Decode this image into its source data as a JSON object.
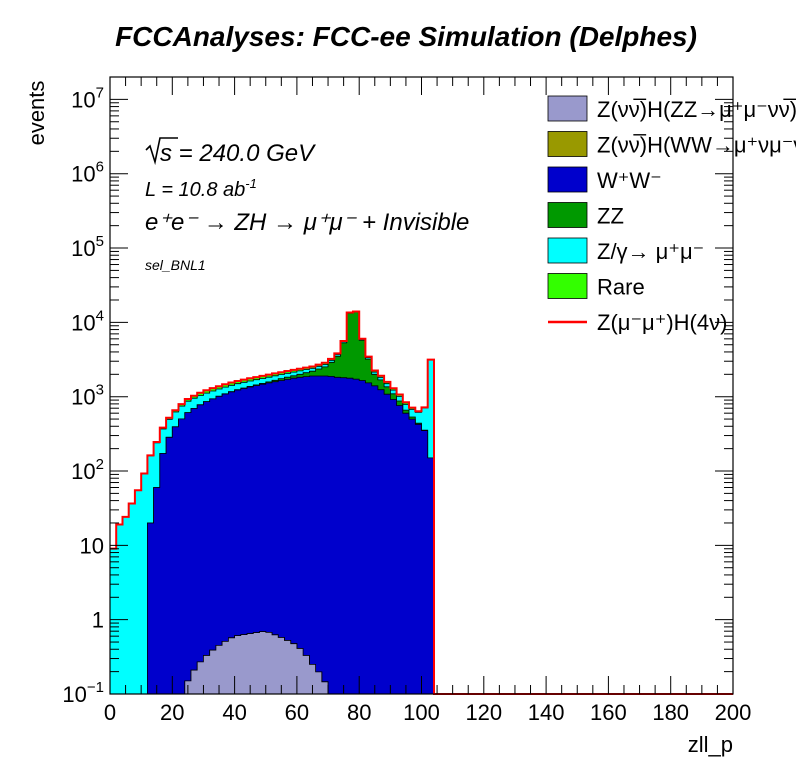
{
  "chart_data": {
    "type": "histogram-stacked",
    "title": "FCCAnalyses: FCC-ee Simulation (Delphes)",
    "xlabel": "zll_p",
    "ylabel": "events",
    "xlim": [
      0,
      200
    ],
    "ylim": [
      0.1,
      20000000
    ],
    "yscale": "log",
    "x_ticks": [
      "0",
      "20",
      "40",
      "60",
      "80",
      "100",
      "120",
      "140",
      "160",
      "180",
      "200"
    ],
    "y_ticks": [
      {
        "v": 0.1,
        "base": "10",
        "exp": "−1"
      },
      {
        "v": 1,
        "base": "1",
        "exp": ""
      },
      {
        "v": 10,
        "base": "10",
        "exp": ""
      },
      {
        "v": 100,
        "base": "10",
        "exp": "2"
      },
      {
        "v": 1000,
        "base": "10",
        "exp": "3"
      },
      {
        "v": 10000,
        "base": "10",
        "exp": "4"
      },
      {
        "v": 100000,
        "base": "10",
        "exp": "5"
      },
      {
        "v": 1000000,
        "base": "10",
        "exp": "6"
      },
      {
        "v": 10000000,
        "base": "10",
        "exp": "7"
      }
    ],
    "annotations": {
      "sqrt_s": "s = 240.0 GeV",
      "lumi": "L = 10.8 ab",
      "lumi_exp": "-1",
      "process": "e⁺e⁻ → ZH → μ⁺μ⁻ + Invisible",
      "selection": "sel_BNL1"
    },
    "legend_position": "top-right",
    "x_points": [
      0,
      2,
      4,
      6,
      8,
      10,
      12,
      15,
      20,
      25,
      30,
      40,
      50,
      60,
      65,
      70,
      74,
      76,
      78,
      80,
      82,
      85,
      90,
      95,
      98,
      100,
      102,
      103,
      104,
      105
    ],
    "series": [
      {
        "name": "Z(νν̅)H(ZZ→μ⁺μ⁻νν̅)",
        "color": "#9999cc",
        "type": "stack",
        "values": [
          0,
          0,
          0,
          0,
          0,
          0,
          0,
          0,
          0,
          0.15,
          0.3,
          0.6,
          0.7,
          0.45,
          0.25,
          0.12,
          0,
          0,
          0,
          0,
          0,
          0,
          0,
          0,
          0,
          0,
          0,
          0,
          0,
          0
        ]
      },
      {
        "name": "Z(νν̅)H(WW→μ⁺νμ⁻ν̅)",
        "color": "#999900",
        "type": "stack",
        "values": [
          0,
          0,
          0,
          0,
          0,
          0,
          0,
          0,
          0,
          0,
          0,
          0,
          0,
          0,
          0,
          0,
          0,
          0,
          0,
          0,
          0,
          0,
          0,
          0,
          0,
          0,
          0,
          0,
          0,
          0
        ]
      },
      {
        "name": "W⁺W⁻",
        "color": "#0000cc",
        "type": "stack",
        "values": [
          0,
          0,
          0,
          0,
          0,
          0,
          0,
          60,
          340,
          610,
          820,
          1200,
          1500,
          1800,
          1900,
          1900,
          1800,
          1800,
          1750,
          1700,
          1600,
          1400,
          1000,
          600,
          450,
          400,
          300,
          150,
          0,
          0
        ]
      },
      {
        "name": "ZZ",
        "color": "#009900",
        "type": "stack",
        "values": [
          0,
          0,
          0,
          0,
          0,
          0,
          0,
          0,
          0,
          0,
          0,
          10,
          40,
          150,
          300,
          700,
          2000,
          5000,
          18000,
          6000,
          2200,
          600,
          200,
          60,
          20,
          10,
          0,
          0,
          0,
          0
        ]
      },
      {
        "name": "Z/γ→ μ⁺μ⁻",
        "color": "#00ffff",
        "type": "stack",
        "values": [
          0,
          18,
          20,
          28,
          45,
          65,
          120,
          180,
          220,
          260,
          260,
          250,
          250,
          230,
          210,
          190,
          190,
          180,
          170,
          160,
          150,
          140,
          135,
          130,
          150,
          200,
          500,
          3000,
          7000,
          0
        ]
      },
      {
        "name": "Rare",
        "color": "#33ff00",
        "type": "stack",
        "values": [
          0,
          0.1,
          0.1,
          0.1,
          0.1,
          0.1,
          0,
          6,
          30,
          60,
          100,
          130,
          150,
          150,
          140,
          140,
          135,
          130,
          130,
          125,
          120,
          110,
          80,
          50,
          30,
          15,
          8,
          4,
          1,
          0
        ]
      },
      {
        "name": "Z(μ⁻μ⁺)H(4ν)",
        "color": "#ff0000",
        "type": "line",
        "values": []
      }
    ]
  }
}
